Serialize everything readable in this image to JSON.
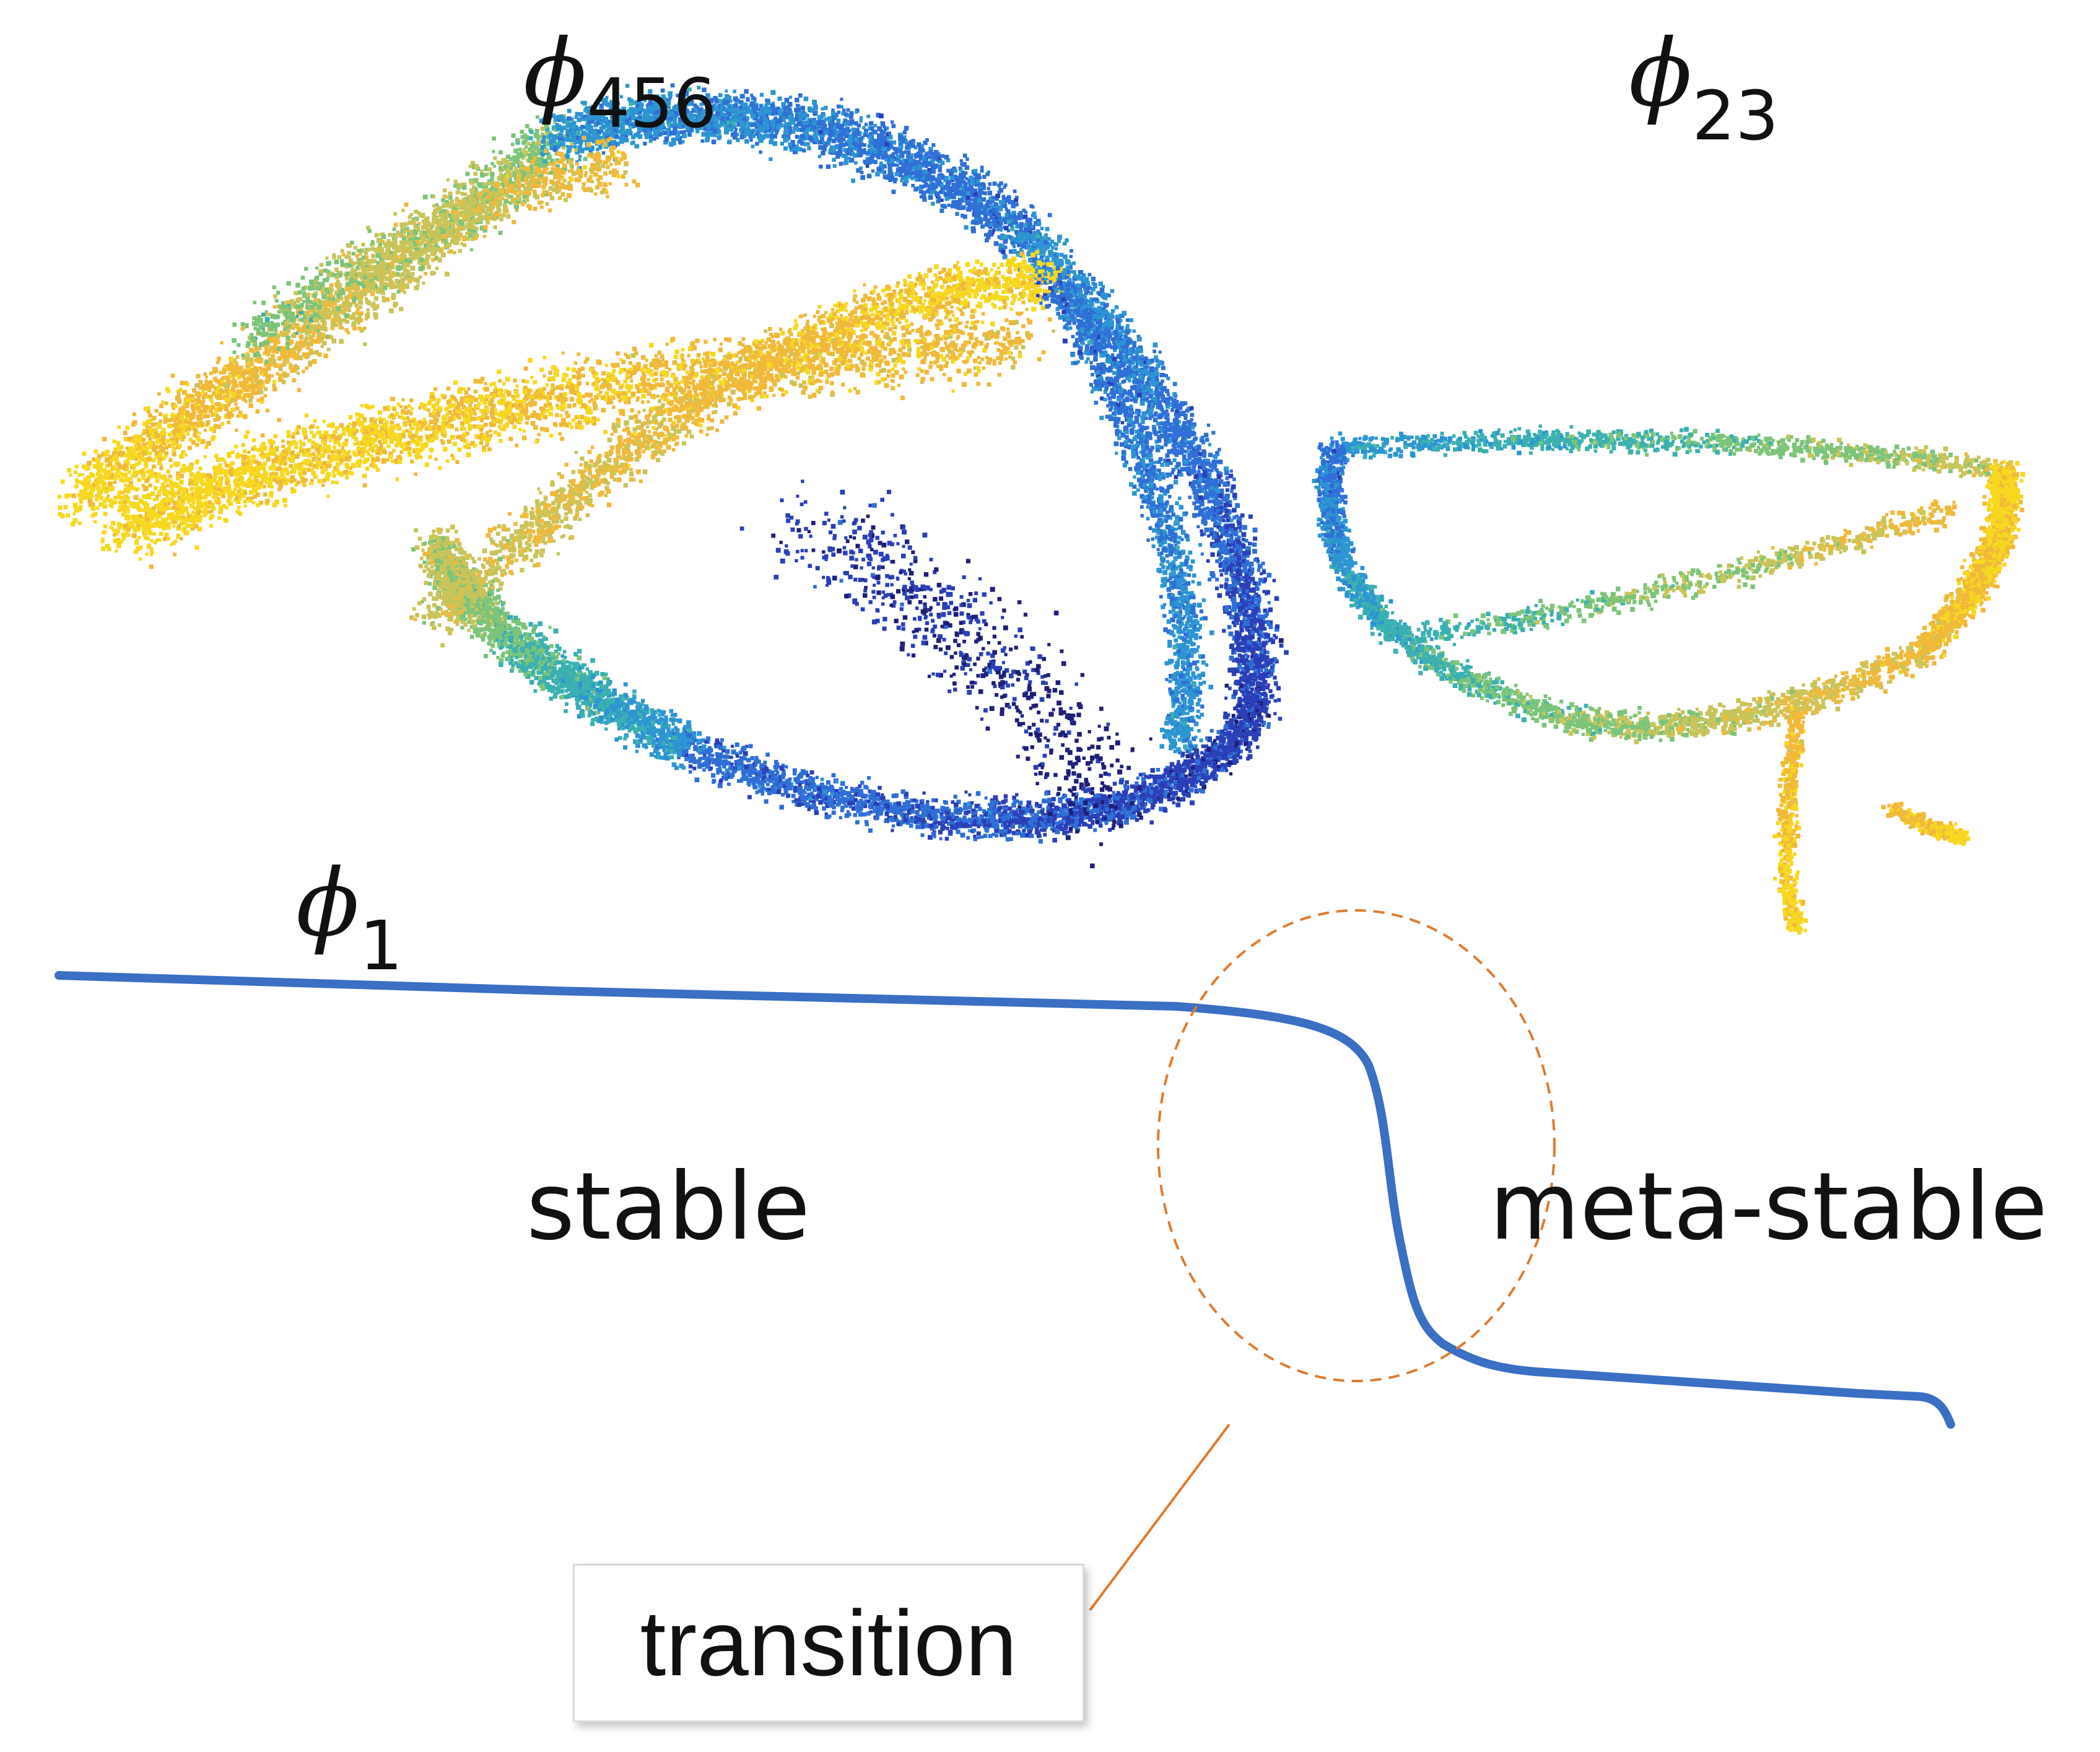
{
  "labels": {
    "phi_symbol": "ϕ",
    "phi456_sub": "456",
    "phi23_sub": "23",
    "phi1_sub": "1",
    "stable": "stable",
    "meta_stable": "meta-stable",
    "transition": "transition"
  },
  "colors": {
    "curve": "#3a6fc4",
    "annotation": "#e07b2e",
    "palette": [
      "#1f1f7a",
      "#2a3fb8",
      "#2f6fd6",
      "#2d95d2",
      "#3bb0b0",
      "#7cc47a",
      "#c9c45a",
      "#f0b93a",
      "#f7d820"
    ]
  },
  "icons": {
    "scatter_456": "dense-ring-scatter-cloud",
    "scatter_23": "triangular-loop-scatter-cloud",
    "transition_marker": "dashed-ellipse"
  }
}
